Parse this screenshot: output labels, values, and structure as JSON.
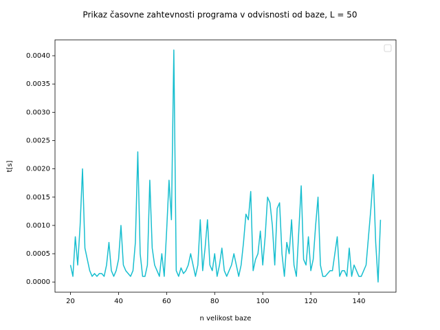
{
  "chart_data": {
    "type": "line",
    "title": "Prikaz časovne zahtevnosti programa v odvisnosti od baze, L = 50",
    "xlabel": "n velikost baze",
    "ylabel": "t[s]",
    "x": [
      20,
      21,
      22,
      23,
      24,
      25,
      26,
      27,
      28,
      29,
      30,
      31,
      32,
      33,
      34,
      35,
      36,
      37,
      38,
      39,
      40,
      41,
      42,
      43,
      44,
      45,
      46,
      47,
      48,
      49,
      50,
      51,
      52,
      53,
      54,
      55,
      56,
      57,
      58,
      59,
      60,
      61,
      62,
      63,
      64,
      65,
      66,
      67,
      68,
      69,
      70,
      71,
      72,
      73,
      74,
      75,
      76,
      77,
      78,
      79,
      80,
      81,
      82,
      83,
      84,
      85,
      86,
      87,
      88,
      89,
      90,
      91,
      92,
      93,
      94,
      95,
      96,
      97,
      98,
      99,
      100,
      101,
      102,
      103,
      104,
      105,
      106,
      107,
      108,
      109,
      110,
      111,
      112,
      113,
      114,
      115,
      116,
      117,
      118,
      119,
      120,
      121,
      122,
      123,
      124,
      125,
      126,
      127,
      128,
      129,
      130,
      131,
      132,
      133,
      134,
      135,
      136,
      137,
      138,
      139,
      140,
      141,
      142,
      143,
      144,
      145,
      146,
      147,
      148,
      149
    ],
    "series": [
      {
        "color": "#17becf",
        "values": [
          0.0003,
          0.0001,
          0.0008,
          0.0003,
          0.001,
          0.002,
          0.0006,
          0.0004,
          0.0002,
          0.0001,
          0.00015,
          0.0001,
          0.00015,
          0.00015,
          0.0001,
          0.0003,
          0.0007,
          0.0002,
          0.0001,
          0.0002,
          0.0004,
          0.001,
          0.0003,
          0.0002,
          0.00015,
          0.0001,
          0.0002,
          0.0007,
          0.0023,
          0.0005,
          0.0001,
          0.0001,
          0.0003,
          0.0018,
          0.0006,
          0.0003,
          0.0002,
          0.0001,
          0.0005,
          0.0001,
          0.0009,
          0.0018,
          0.0011,
          0.0041,
          0.0002,
          0.0001,
          0.00025,
          0.00015,
          0.0002,
          0.0003,
          0.0005,
          0.0003,
          0.0001,
          0.0003,
          0.0011,
          0.0002,
          0.0006,
          0.0011,
          0.0003,
          0.0002,
          0.0005,
          0.0001,
          0.0003,
          0.0006,
          0.0002,
          0.0001,
          0.0002,
          0.0003,
          0.0005,
          0.0003,
          0.0001,
          0.0003,
          0.0007,
          0.0012,
          0.0011,
          0.0016,
          0.0002,
          0.0004,
          0.0005,
          0.0009,
          0.0003,
          0.0008,
          0.0015,
          0.0014,
          0.001,
          0.0003,
          0.0013,
          0.0014,
          0.0005,
          0.0001,
          0.0007,
          0.0005,
          0.0011,
          0.0003,
          0.0001,
          0.0009,
          0.0017,
          0.0004,
          0.0003,
          0.0008,
          0.0002,
          0.0004,
          0.001,
          0.0015,
          0.0003,
          0.0001,
          0.0001,
          0.00015,
          0.0002,
          0.0002,
          0.0005,
          0.0008,
          0.0001,
          0.0002,
          0.0002,
          0.0001,
          0.0006,
          0.0001,
          0.0003,
          0.0002,
          0.0001,
          0.0001,
          0.0002,
          0.0003,
          0.0008,
          0.0013,
          0.0019,
          0.0007,
          0,
          0.0011
        ]
      }
    ],
    "xlim": [
      13.55,
      155.45
    ],
    "xticks": [
      20,
      40,
      60,
      80,
      100,
      120,
      140
    ],
    "ylim": [
      -0.00018,
      0.00428
    ],
    "yticks": [
      {
        "value": 0,
        "label": "0.0000"
      },
      {
        "value": 0.0005,
        "label": "0.0005"
      },
      {
        "value": 0.001,
        "label": "0.0010"
      },
      {
        "value": 0.0015,
        "label": "0.0015"
      },
      {
        "value": 0.002,
        "label": "0.0020"
      },
      {
        "value": 0.0025,
        "label": "0.0025"
      },
      {
        "value": 0.003,
        "label": "0.0030"
      },
      {
        "value": 0.0035,
        "label": "0.0035"
      },
      {
        "value": 0.004,
        "label": "0.0040"
      }
    ],
    "legend": "upper right"
  }
}
